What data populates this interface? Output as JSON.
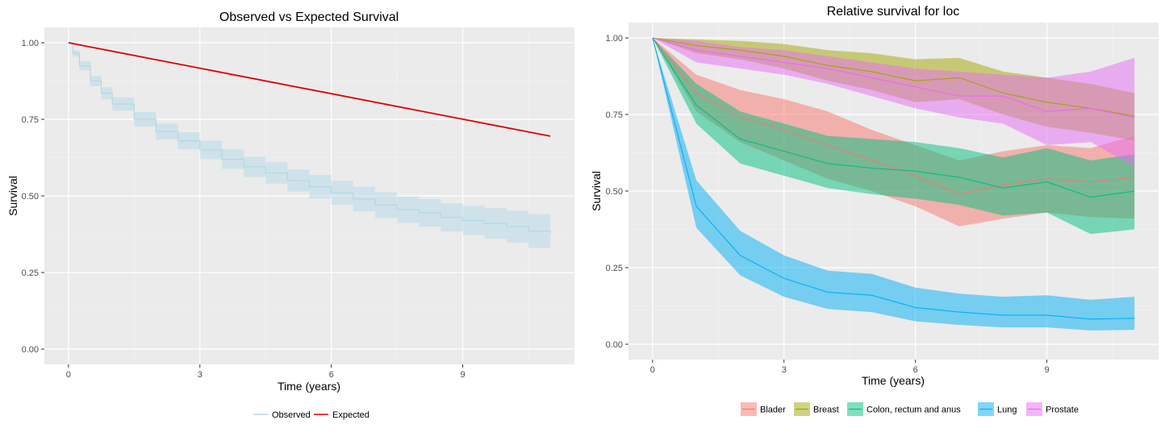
{
  "chart_data": [
    {
      "type": "line",
      "title": "Observed vs Expected Survival",
      "xlabel": "Time (years)",
      "ylabel": "Survival",
      "xlim": [
        -0.55,
        11.55
      ],
      "ylim": [
        -0.05,
        1.05
      ],
      "xticks": [
        0,
        3,
        6,
        9
      ],
      "yticks": [
        0,
        0.25,
        0.5,
        0.75,
        1.0
      ],
      "ytick_labels": [
        "0.00",
        "0.25",
        "0.50",
        "0.75",
        "1.00"
      ],
      "legend_position": "bottom",
      "series": [
        {
          "name": "Observed",
          "color": "#add8e6",
          "x": [
            0,
            0.1,
            0.25,
            0.5,
            0.75,
            1,
            1.5,
            2,
            2.5,
            3,
            3.5,
            4,
            4.5,
            5,
            5.5,
            6,
            6.5,
            7,
            7.5,
            8,
            8.5,
            9,
            9.5,
            10,
            10.5,
            11
          ],
          "y": [
            1.0,
            0.965,
            0.925,
            0.875,
            0.835,
            0.8,
            0.75,
            0.71,
            0.68,
            0.65,
            0.62,
            0.595,
            0.575,
            0.55,
            0.53,
            0.51,
            0.49,
            0.47,
            0.455,
            0.445,
            0.43,
            0.42,
            0.41,
            0.4,
            0.385,
            0.375
          ],
          "lower": [
            1.0,
            0.955,
            0.91,
            0.858,
            0.815,
            0.778,
            0.726,
            0.684,
            0.652,
            0.62,
            0.588,
            0.562,
            0.54,
            0.514,
            0.492,
            0.471,
            0.45,
            0.428,
            0.412,
            0.4,
            0.384,
            0.372,
            0.36,
            0.348,
            0.33,
            0.335
          ],
          "upper": [
            1.0,
            0.975,
            0.94,
            0.892,
            0.855,
            0.822,
            0.774,
            0.736,
            0.708,
            0.68,
            0.652,
            0.628,
            0.61,
            0.586,
            0.568,
            0.549,
            0.53,
            0.512,
            0.498,
            0.49,
            0.476,
            0.468,
            0.46,
            0.452,
            0.44,
            0.42
          ]
        },
        {
          "name": "Expected",
          "color": "#dd0000",
          "x": [
            0,
            11
          ],
          "y": [
            1.0,
            0.695
          ]
        }
      ]
    },
    {
      "type": "line",
      "title": "Relative survival for loc",
      "xlabel": "Time (years)",
      "ylabel": "Survival",
      "xlim": [
        -0.55,
        11.55
      ],
      "ylim": [
        -0.05,
        1.05
      ],
      "xticks": [
        0,
        3,
        6,
        9
      ],
      "yticks": [
        0,
        0.25,
        0.5,
        0.75,
        1.0
      ],
      "ytick_labels": [
        "0.00",
        "0.25",
        "0.50",
        "0.75",
        "1.00"
      ],
      "legend_position": "bottom",
      "x": [
        0,
        1,
        2,
        3,
        4,
        5,
        6,
        7,
        8,
        9,
        10,
        11
      ],
      "series": [
        {
          "name": "Blader",
          "color": "#f8766d",
          "y": [
            1.0,
            0.82,
            0.74,
            0.7,
            0.65,
            0.6,
            0.55,
            0.49,
            0.52,
            0.54,
            0.53,
            0.545
          ],
          "lower": [
            1.0,
            0.76,
            0.66,
            0.6,
            0.54,
            0.5,
            0.45,
            0.385,
            0.41,
            0.43,
            0.415,
            0.41
          ],
          "upper": [
            1.0,
            0.88,
            0.83,
            0.8,
            0.76,
            0.7,
            0.65,
            0.6,
            0.63,
            0.65,
            0.64,
            0.68
          ]
        },
        {
          "name": "Breast",
          "color": "#a3a500",
          "y": [
            1.0,
            0.975,
            0.96,
            0.94,
            0.91,
            0.89,
            0.86,
            0.87,
            0.82,
            0.79,
            0.77,
            0.745
          ],
          "lower": [
            1.0,
            0.95,
            0.93,
            0.9,
            0.86,
            0.83,
            0.79,
            0.8,
            0.75,
            0.71,
            0.69,
            0.665
          ],
          "upper": [
            1.0,
            0.995,
            0.99,
            0.98,
            0.96,
            0.95,
            0.93,
            0.935,
            0.89,
            0.87,
            0.85,
            0.82
          ]
        },
        {
          "name": "Colon, rectum and anus",
          "color": "#00bf7d",
          "y": [
            1.0,
            0.78,
            0.67,
            0.63,
            0.59,
            0.575,
            0.565,
            0.545,
            0.51,
            0.53,
            0.48,
            0.5
          ],
          "lower": [
            1.0,
            0.72,
            0.59,
            0.55,
            0.51,
            0.49,
            0.475,
            0.455,
            0.42,
            0.43,
            0.36,
            0.375
          ],
          "upper": [
            1.0,
            0.85,
            0.76,
            0.72,
            0.68,
            0.67,
            0.66,
            0.64,
            0.61,
            0.64,
            0.6,
            0.62
          ]
        },
        {
          "name": "Lung",
          "color": "#00b0f6",
          "y": [
            1.0,
            0.45,
            0.29,
            0.215,
            0.17,
            0.16,
            0.12,
            0.105,
            0.095,
            0.095,
            0.082,
            0.085
          ],
          "lower": [
            1.0,
            0.38,
            0.225,
            0.155,
            0.115,
            0.105,
            0.075,
            0.063,
            0.055,
            0.055,
            0.045,
            0.047
          ],
          "upper": [
            1.0,
            0.535,
            0.37,
            0.29,
            0.24,
            0.23,
            0.185,
            0.165,
            0.155,
            0.16,
            0.145,
            0.155
          ]
        },
        {
          "name": "Prostate",
          "color": "#e76bf3",
          "y": [
            1.0,
            0.96,
            0.94,
            0.92,
            0.9,
            0.87,
            0.84,
            0.81,
            0.81,
            0.76,
            0.77,
            0.74
          ],
          "lower": [
            1.0,
            0.92,
            0.9,
            0.88,
            0.85,
            0.81,
            0.77,
            0.74,
            0.72,
            0.65,
            0.66,
            0.58
          ],
          "upper": [
            1.0,
            0.99,
            0.97,
            0.96,
            0.94,
            0.92,
            0.9,
            0.89,
            0.88,
            0.87,
            0.89,
            0.935
          ]
        }
      ]
    }
  ]
}
